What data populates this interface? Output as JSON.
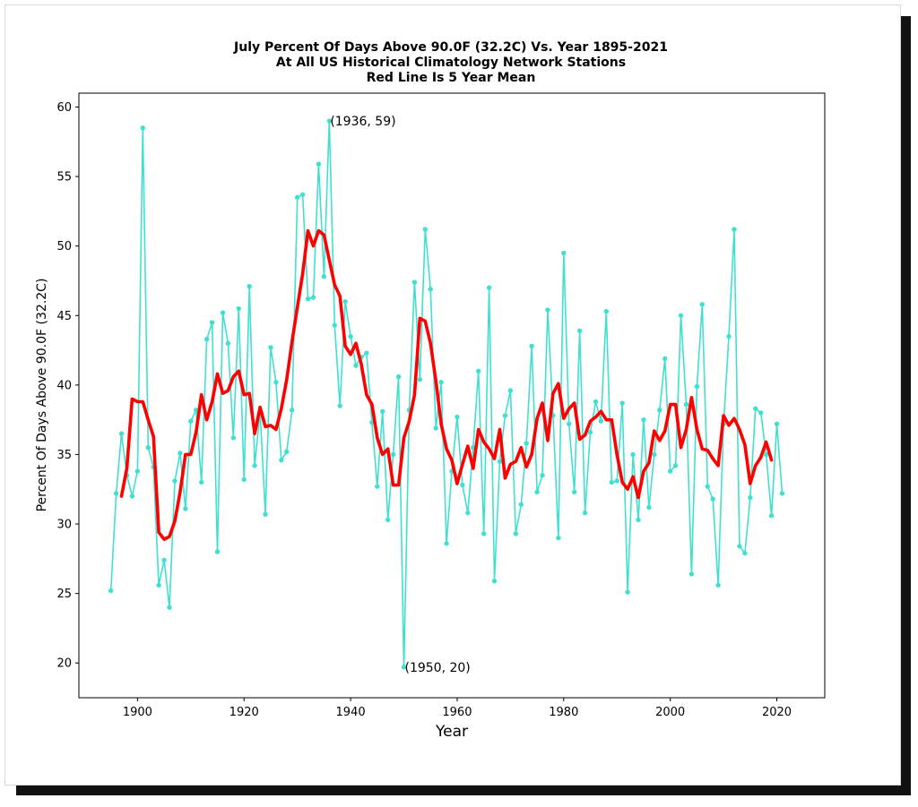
{
  "chart_data": {
    "type": "line",
    "title": [
      "July Percent Of Days Above 90.0F (32.2C) Vs. Year 1895-2021",
      "At All US Historical Climatology Network Stations",
      "Red Line Is 5 Year Mean"
    ],
    "xlabel": "Year",
    "ylabel": "Percent Of Days Above 90.0F (32.2C)",
    "xlim": [
      1889,
      2029
    ],
    "ylim": [
      17.5,
      61.0
    ],
    "xticks": [
      1900,
      1920,
      1940,
      1960,
      1980,
      2000,
      2020
    ],
    "yticks": [
      20,
      25,
      30,
      35,
      40,
      45,
      50,
      55,
      60
    ],
    "grid": false,
    "series": [
      {
        "color": "#40e0d0",
        "marker": "dot",
        "x": [
          1895,
          1896,
          1897,
          1898,
          1899,
          1900,
          1901,
          1902,
          1903,
          1904,
          1905,
          1906,
          1907,
          1908,
          1909,
          1910,
          1911,
          1912,
          1913,
          1914,
          1915,
          1916,
          1917,
          1918,
          1919,
          1920,
          1921,
          1922,
          1923,
          1924,
          1925,
          1926,
          1927,
          1928,
          1929,
          1930,
          1931,
          1932,
          1933,
          1934,
          1935,
          1936,
          1937,
          1938,
          1939,
          1940,
          1941,
          1942,
          1943,
          1944,
          1945,
          1946,
          1947,
          1948,
          1949,
          1950,
          1951,
          1952,
          1953,
          1954,
          1955,
          1956,
          1957,
          1958,
          1959,
          1960,
          1961,
          1962,
          1963,
          1964,
          1965,
          1966,
          1967,
          1968,
          1969,
          1970,
          1971,
          1972,
          1973,
          1974,
          1975,
          1976,
          1977,
          1978,
          1979,
          1980,
          1981,
          1982,
          1983,
          1984,
          1985,
          1986,
          1987,
          1988,
          1989,
          1990,
          1991,
          1992,
          1993,
          1994,
          1995,
          1996,
          1997,
          1998,
          1999,
          2000,
          2001,
          2002,
          2003,
          2004,
          2005,
          2006,
          2007,
          2008,
          2009,
          2010,
          2011,
          2012,
          2013,
          2014,
          2015,
          2016,
          2017,
          2018,
          2019,
          2020,
          2021
        ],
        "values": [
          25.2,
          32.2,
          36.5,
          33.5,
          32.0,
          33.8,
          58.5,
          35.5,
          34.1,
          25.6,
          27.4,
          24.0,
          33.1,
          35.1,
          31.1,
          37.4,
          38.2,
          33.0,
          43.3,
          44.5,
          28.0,
          45.2,
          43.0,
          36.2,
          45.5,
          33.2,
          47.1,
          34.2,
          38.1,
          30.7,
          42.7,
          40.2,
          34.6,
          35.2,
          38.2,
          53.5,
          53.7,
          46.2,
          46.3,
          55.9,
          47.8,
          59.0,
          44.3,
          38.5,
          46.0,
          43.5,
          41.4,
          42.0,
          42.3,
          37.3,
          32.7,
          38.1,
          30.3,
          35.0,
          40.6,
          19.7,
          38.2,
          47.4,
          40.4,
          51.2,
          46.9,
          36.9,
          40.2,
          28.6,
          33.8,
          37.7,
          32.8,
          30.8,
          35.5,
          41.0,
          29.3,
          47.0,
          25.9,
          34.5,
          37.8,
          39.6,
          29.3,
          31.4,
          35.8,
          42.8,
          32.3,
          33.5,
          45.4,
          37.8,
          29.0,
          49.5,
          37.2,
          32.3,
          43.9,
          30.8,
          36.6,
          38.8,
          37.4,
          45.3,
          33.0,
          33.1,
          38.7,
          25.1,
          35.0,
          30.3,
          37.5,
          31.2,
          35.0,
          38.2,
          41.9,
          33.8,
          34.2,
          45.0,
          38.6,
          26.4,
          39.9,
          45.8,
          32.7,
          31.8,
          25.6,
          37.2,
          43.5,
          51.2,
          28.4,
          27.9,
          31.9,
          38.3,
          38.0,
          35.0,
          30.6,
          37.2,
          32.2
        ]
      },
      {
        "color": "#ff0000",
        "marker": "none",
        "x": [
          1897,
          1898,
          1899,
          1900,
          1901,
          1902,
          1903,
          1904,
          1905,
          1906,
          1907,
          1908,
          1909,
          1910,
          1911,
          1912,
          1913,
          1914,
          1915,
          1916,
          1917,
          1918,
          1919,
          1920,
          1921,
          1922,
          1923,
          1924,
          1925,
          1926,
          1927,
          1928,
          1929,
          1930,
          1931,
          1932,
          1933,
          1934,
          1935,
          1936,
          1937,
          1938,
          1939,
          1940,
          1941,
          1942,
          1943,
          1944,
          1945,
          1946,
          1947,
          1948,
          1949,
          1950,
          1951,
          1952,
          1953,
          1954,
          1955,
          1956,
          1957,
          1958,
          1959,
          1960,
          1961,
          1962,
          1963,
          1964,
          1965,
          1966,
          1967,
          1968,
          1969,
          1970,
          1971,
          1972,
          1973,
          1974,
          1975,
          1976,
          1977,
          1978,
          1979,
          1980,
          1981,
          1982,
          1983,
          1984,
          1985,
          1986,
          1987,
          1988,
          1989,
          1990,
          1991,
          1992,
          1993,
          1994,
          1995,
          1996,
          1997,
          1998,
          1999,
          2000,
          2001,
          2002,
          2003,
          2004,
          2005,
          2006,
          2007,
          2008,
          2009,
          2010,
          2011,
          2012,
          2013,
          2014,
          2015,
          2016,
          2017,
          2018,
          2019
        ],
        "values": [
          32.0,
          34.0,
          39.0,
          38.8,
          38.8,
          37.5,
          36.3,
          29.4,
          28.9,
          29.1,
          30.2,
          32.3,
          35.0,
          35.0,
          36.6,
          39.3,
          37.5,
          38.8,
          40.8,
          39.4,
          39.6,
          40.6,
          41.0,
          39.3,
          39.4,
          36.5,
          38.4,
          37.0,
          37.1,
          36.8,
          38.3,
          40.4,
          43.1,
          45.6,
          48.0,
          51.1,
          50.0,
          51.1,
          50.8,
          49.0,
          47.2,
          46.4,
          42.8,
          42.2,
          43.0,
          41.5,
          39.3,
          38.6,
          36.2,
          35.0,
          35.4,
          32.8,
          32.8,
          36.2,
          37.4,
          39.3,
          44.8,
          44.6,
          43.0,
          40.3,
          37.2,
          35.4,
          34.6,
          32.9,
          34.3,
          35.6,
          34.0,
          36.8,
          35.9,
          35.4,
          34.7,
          36.8,
          33.3,
          34.3,
          34.5,
          35.5,
          34.1,
          35.0,
          37.6,
          38.7,
          36.0,
          39.4,
          40.1,
          37.6,
          38.3,
          38.7,
          36.1,
          36.4,
          37.4,
          37.7,
          38.1,
          37.5,
          37.5,
          35.0,
          33.0,
          32.5,
          33.4,
          31.9,
          33.8,
          34.4,
          36.7,
          36.0,
          36.7,
          38.6,
          38.6,
          35.5,
          36.8,
          39.1,
          36.8,
          35.4,
          35.3,
          34.7,
          34.2,
          37.8,
          37.1,
          37.6,
          36.8,
          35.7,
          32.9,
          34.2,
          34.8,
          35.9,
          34.6
        ]
      }
    ],
    "annotations": [
      {
        "text": "(1936, 59)",
        "x": 1936,
        "y": 59
      },
      {
        "text": "(1950, 20)",
        "x": 1950,
        "y": 19.7
      }
    ]
  }
}
